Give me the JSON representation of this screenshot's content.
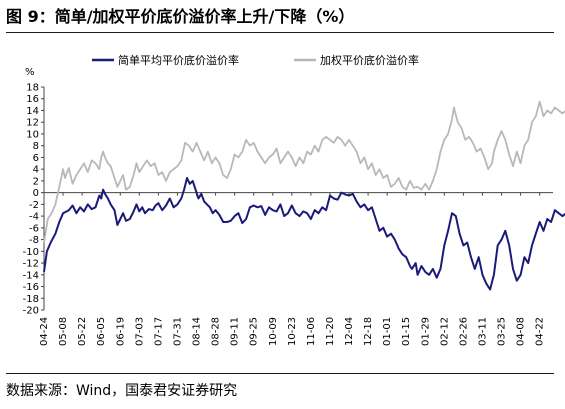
{
  "title": "图 9：简单/加权平价底价溢价率上升/下降（%）",
  "source": {
    "prefix": "数据来源：",
    "body": "Wind，国泰君安证券研究"
  },
  "chart_data": {
    "type": "line",
    "unit_label": "%",
    "ylim": [
      -20,
      18
    ],
    "y_ticks": [
      18,
      16,
      14,
      12,
      10,
      8,
      6,
      4,
      2,
      0,
      -2,
      -4,
      -6,
      -8,
      -10,
      -12,
      -14,
      -16,
      -18,
      -20
    ],
    "grid": false,
    "legend_position": "top",
    "x_tick_labels": [
      "04-24",
      "05-08",
      "05-22",
      "06-05",
      "06-19",
      "07-03",
      "07-17",
      "07-31",
      "08-14",
      "08-28",
      "09-11",
      "09-25",
      "10-09",
      "10-23",
      "11-06",
      "11-20",
      "12-04",
      "12-18",
      "01-01",
      "01-15",
      "01-29",
      "02-12",
      "02-26",
      "03-11",
      "03-25",
      "04-08",
      "04-22"
    ],
    "series": [
      {
        "name": "简单平均平价底价溢价率",
        "color": "#1a1a7a",
        "points": [
          [
            0,
            -13.5
          ],
          [
            0.15,
            -10
          ],
          [
            0.35,
            -8.5
          ],
          [
            0.6,
            -7
          ],
          [
            0.8,
            -5
          ],
          [
            1.0,
            -3.5
          ],
          [
            1.3,
            -3
          ],
          [
            1.5,
            -2.2
          ],
          [
            1.7,
            -3.5
          ],
          [
            1.9,
            -2.5
          ],
          [
            2.1,
            -3.2
          ],
          [
            2.3,
            -2
          ],
          [
            2.5,
            -2.8
          ],
          [
            2.7,
            -2.5
          ],
          [
            2.9,
            -0.5
          ],
          [
            3.0,
            -1
          ],
          [
            3.1,
            0.5
          ],
          [
            3.2,
            -0.2
          ],
          [
            3.35,
            -1
          ],
          [
            3.5,
            -2
          ],
          [
            3.7,
            -3
          ],
          [
            3.85,
            -5.5
          ],
          [
            4.0,
            -4.5
          ],
          [
            4.15,
            -3.5
          ],
          [
            4.3,
            -4.8
          ],
          [
            4.5,
            -4.5
          ],
          [
            4.7,
            -3.2
          ],
          [
            4.85,
            -2
          ],
          [
            5.0,
            -3.2
          ],
          [
            5.15,
            -2.5
          ],
          [
            5.3,
            -3.5
          ],
          [
            5.5,
            -2.8
          ],
          [
            5.7,
            -3
          ],
          [
            5.85,
            -2.2
          ],
          [
            6.0,
            -1.8
          ],
          [
            6.2,
            -3
          ],
          [
            6.4,
            -2.2
          ],
          [
            6.6,
            -1
          ],
          [
            6.8,
            -2.5
          ],
          [
            7.0,
            -2
          ],
          [
            7.2,
            -1
          ],
          [
            7.35,
            0.5
          ],
          [
            7.5,
            2.5
          ],
          [
            7.65,
            1.5
          ],
          [
            7.8,
            2
          ],
          [
            7.95,
            0.5
          ],
          [
            8.1,
            -1
          ],
          [
            8.25,
            -0.2
          ],
          [
            8.4,
            -1.5
          ],
          [
            8.55,
            -2
          ],
          [
            8.7,
            -2.5
          ],
          [
            8.85,
            -3.5
          ],
          [
            9.0,
            -3
          ],
          [
            9.2,
            -3.8
          ],
          [
            9.4,
            -5
          ],
          [
            9.6,
            -5
          ],
          [
            9.8,
            -4.8
          ],
          [
            10.0,
            -4
          ],
          [
            10.2,
            -3.5
          ],
          [
            10.4,
            -5.2
          ],
          [
            10.6,
            -4.5
          ],
          [
            10.8,
            -2.5
          ],
          [
            11.0,
            -2.2
          ],
          [
            11.2,
            -2.5
          ],
          [
            11.4,
            -2.3
          ],
          [
            11.6,
            -3.8
          ],
          [
            11.8,
            -2.5
          ],
          [
            12.0,
            -3
          ],
          [
            12.2,
            -3.2
          ],
          [
            12.4,
            -2
          ],
          [
            12.6,
            -4
          ],
          [
            12.8,
            -3.5
          ],
          [
            13.0,
            -2.2
          ],
          [
            13.2,
            -3.5
          ],
          [
            13.4,
            -4
          ],
          [
            13.6,
            -3.2
          ],
          [
            13.8,
            -3.5
          ],
          [
            14.0,
            -4.5
          ],
          [
            14.2,
            -3
          ],
          [
            14.4,
            -3.5
          ],
          [
            14.6,
            -2.5
          ],
          [
            14.8,
            -3
          ],
          [
            15.0,
            -0.5
          ],
          [
            15.2,
            -1
          ],
          [
            15.4,
            -1.2
          ],
          [
            15.6,
            0
          ],
          [
            15.8,
            -0.3
          ],
          [
            16.0,
            -0.5
          ],
          [
            16.2,
            -0.2
          ],
          [
            16.4,
            -1.5
          ],
          [
            16.6,
            -2.5
          ],
          [
            16.8,
            -2
          ],
          [
            17.0,
            -3
          ],
          [
            17.2,
            -2.5
          ],
          [
            17.4,
            -4.5
          ],
          [
            17.6,
            -6.5
          ],
          [
            17.8,
            -6
          ],
          [
            18.0,
            -7.5
          ],
          [
            18.2,
            -7
          ],
          [
            18.4,
            -8
          ],
          [
            18.6,
            -9.5
          ],
          [
            18.8,
            -10.5
          ],
          [
            19.0,
            -11
          ],
          [
            19.2,
            -12.5
          ],
          [
            19.3,
            -13
          ],
          [
            19.5,
            -12
          ],
          [
            19.6,
            -14
          ],
          [
            19.8,
            -12.5
          ],
          [
            20.0,
            -13.5
          ],
          [
            20.2,
            -14
          ],
          [
            20.4,
            -13
          ],
          [
            20.6,
            -14.5
          ],
          [
            20.8,
            -13
          ],
          [
            21.0,
            -9
          ],
          [
            21.2,
            -6.5
          ],
          [
            21.4,
            -3.5
          ],
          [
            21.6,
            -4
          ],
          [
            21.8,
            -7
          ],
          [
            22.0,
            -9
          ],
          [
            22.2,
            -8.5
          ],
          [
            22.4,
            -11
          ],
          [
            22.6,
            -13
          ],
          [
            22.8,
            -11
          ],
          [
            23.0,
            -14
          ],
          [
            23.2,
            -15.5
          ],
          [
            23.4,
            -16.5
          ],
          [
            23.6,
            -14
          ],
          [
            23.8,
            -9
          ],
          [
            24.0,
            -8
          ],
          [
            24.2,
            -6.5
          ],
          [
            24.4,
            -9
          ],
          [
            24.6,
            -13
          ],
          [
            24.8,
            -15
          ],
          [
            25.0,
            -14
          ],
          [
            25.2,
            -11
          ],
          [
            25.4,
            -12
          ],
          [
            25.6,
            -9
          ],
          [
            25.8,
            -7
          ],
          [
            26.0,
            -5
          ],
          [
            26.2,
            -6.5
          ],
          [
            26.4,
            -4.5
          ],
          [
            26.6,
            -5
          ],
          [
            26.8,
            -3
          ],
          [
            27.0,
            -3.5
          ],
          [
            27.2,
            -4
          ],
          [
            27.4,
            -3.5
          ],
          [
            27.6,
            -4.5
          ],
          [
            27.8,
            -3.5
          ],
          [
            28.0,
            -4
          ],
          [
            28.2,
            -1.5
          ],
          [
            28.4,
            -2
          ],
          [
            28.6,
            -0.5
          ],
          [
            28.7,
            -2
          ]
        ]
      },
      {
        "name": "加权平价底价溢价率",
        "color": "#b8b8b8",
        "points": [
          [
            0,
            -8.5
          ],
          [
            0.2,
            -4.5
          ],
          [
            0.4,
            -3.5
          ],
          [
            0.6,
            -2
          ],
          [
            0.8,
            1
          ],
          [
            1.0,
            4
          ],
          [
            1.1,
            2.5
          ],
          [
            1.3,
            4.2
          ],
          [
            1.5,
            1.5
          ],
          [
            1.7,
            3
          ],
          [
            1.9,
            4
          ],
          [
            2.1,
            5
          ],
          [
            2.3,
            3.5
          ],
          [
            2.5,
            5.5
          ],
          [
            2.7,
            5
          ],
          [
            2.9,
            4
          ],
          [
            3.0,
            6
          ],
          [
            3.1,
            7
          ],
          [
            3.2,
            6
          ],
          [
            3.35,
            5
          ],
          [
            3.5,
            4.5
          ],
          [
            3.7,
            2.5
          ],
          [
            3.85,
            1
          ],
          [
            4.0,
            2
          ],
          [
            4.15,
            3
          ],
          [
            4.3,
            0.5
          ],
          [
            4.5,
            1
          ],
          [
            4.7,
            3
          ],
          [
            4.85,
            5
          ],
          [
            5.0,
            3.5
          ],
          [
            5.2,
            4.5
          ],
          [
            5.4,
            5.5
          ],
          [
            5.6,
            4.5
          ],
          [
            5.8,
            5
          ],
          [
            6.0,
            3
          ],
          [
            6.2,
            3.5
          ],
          [
            6.4,
            2
          ],
          [
            6.6,
            3.5
          ],
          [
            6.8,
            4
          ],
          [
            7.0,
            4.5
          ],
          [
            7.2,
            5.5
          ],
          [
            7.4,
            8.5
          ],
          [
            7.6,
            8
          ],
          [
            7.8,
            7
          ],
          [
            8.0,
            8.5
          ],
          [
            8.2,
            7
          ],
          [
            8.4,
            5.5
          ],
          [
            8.6,
            7
          ],
          [
            8.8,
            5
          ],
          [
            9.0,
            6
          ],
          [
            9.2,
            5
          ],
          [
            9.4,
            3
          ],
          [
            9.6,
            2.5
          ],
          [
            9.8,
            4
          ],
          [
            10.0,
            6.5
          ],
          [
            10.2,
            6
          ],
          [
            10.4,
            7
          ],
          [
            10.6,
            9
          ],
          [
            10.8,
            8
          ],
          [
            11.0,
            8.5
          ],
          [
            11.2,
            7
          ],
          [
            11.4,
            6
          ],
          [
            11.6,
            5
          ],
          [
            11.8,
            6
          ],
          [
            12.0,
            6.5
          ],
          [
            12.2,
            7.5
          ],
          [
            12.4,
            5
          ],
          [
            12.6,
            6
          ],
          [
            12.8,
            7
          ],
          [
            13.0,
            6
          ],
          [
            13.2,
            4.5
          ],
          [
            13.4,
            6
          ],
          [
            13.6,
            5
          ],
          [
            13.8,
            7
          ],
          [
            14.0,
            6.5
          ],
          [
            14.2,
            8
          ],
          [
            14.4,
            7
          ],
          [
            14.6,
            9
          ],
          [
            14.8,
            9.5
          ],
          [
            15.0,
            9
          ],
          [
            15.2,
            8.5
          ],
          [
            15.4,
            9.5
          ],
          [
            15.6,
            9
          ],
          [
            15.8,
            8
          ],
          [
            16.0,
            9
          ],
          [
            16.2,
            8
          ],
          [
            16.4,
            7
          ],
          [
            16.6,
            5
          ],
          [
            16.8,
            6
          ],
          [
            17.0,
            4
          ],
          [
            17.2,
            5
          ],
          [
            17.4,
            3
          ],
          [
            17.6,
            4
          ],
          [
            17.8,
            2.5
          ],
          [
            18.0,
            3
          ],
          [
            18.2,
            1
          ],
          [
            18.4,
            1.5
          ],
          [
            18.6,
            2.5
          ],
          [
            18.8,
            1
          ],
          [
            19.0,
            0.5
          ],
          [
            19.2,
            2
          ],
          [
            19.4,
            0.8
          ],
          [
            19.6,
            1
          ],
          [
            19.8,
            0.5
          ],
          [
            20.0,
            1.5
          ],
          [
            20.2,
            0.5
          ],
          [
            20.4,
            2
          ],
          [
            20.6,
            4
          ],
          [
            20.8,
            7
          ],
          [
            21.0,
            9
          ],
          [
            21.2,
            10
          ],
          [
            21.4,
            12.5
          ],
          [
            21.5,
            14.5
          ],
          [
            21.7,
            12
          ],
          [
            21.9,
            11
          ],
          [
            22.1,
            9
          ],
          [
            22.3,
            9.5
          ],
          [
            22.5,
            8.5
          ],
          [
            22.7,
            7
          ],
          [
            22.9,
            7.5
          ],
          [
            23.1,
            6
          ],
          [
            23.3,
            4
          ],
          [
            23.5,
            5
          ],
          [
            23.6,
            7
          ],
          [
            23.8,
            9
          ],
          [
            24.0,
            10.5
          ],
          [
            24.2,
            9
          ],
          [
            24.4,
            6.5
          ],
          [
            24.6,
            4.5
          ],
          [
            24.8,
            7
          ],
          [
            25.0,
            5
          ],
          [
            25.2,
            8
          ],
          [
            25.4,
            9
          ],
          [
            25.6,
            12
          ],
          [
            25.8,
            13
          ],
          [
            26.0,
            15.5
          ],
          [
            26.2,
            13
          ],
          [
            26.4,
            14
          ],
          [
            26.6,
            13.5
          ],
          [
            26.8,
            14.5
          ],
          [
            27.0,
            14
          ],
          [
            27.2,
            13.5
          ],
          [
            27.4,
            14
          ],
          [
            27.6,
            13.5
          ],
          [
            27.8,
            14.5
          ],
          [
            28.0,
            13.5
          ],
          [
            28.2,
            15.5
          ],
          [
            28.4,
            15
          ],
          [
            28.6,
            15.2
          ],
          [
            28.7,
            14
          ]
        ]
      }
    ]
  }
}
